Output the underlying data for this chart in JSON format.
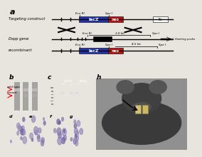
{
  "bg_color": "#e8e4de",
  "lacz_color": "#2233aa",
  "neo_color": "#bb1111",
  "exon_color": "#111111",
  "panel_b_label": "b",
  "panel_c_label": "c",
  "panel_h_label": "h",
  "wt_label": "wild type",
  "mutant_label": "mutant",
  "actin_label": "actin",
  "dspp_label": "dspp",
  "eco_ri": "Eco RI",
  "spe_i": "Spe I",
  "probe_label": "3’ flanking probe",
  "scale_3kb": "3.0 kb",
  "scale_45kb": "4.5 kb",
  "row1_label": "Targeting construct",
  "row2_label": "Dspp gene",
  "row3_label": "recombinant",
  "panel_a_label": "a",
  "panel_d_label": "d",
  "panel_e_label": "e",
  "panel_f_label": "f",
  "panel_g_label": "g",
  "gel_b_bg": "#444444",
  "gel_c_bg": "#111111",
  "hist_color1": "#b0a0c8",
  "hist_color2": "#c0b0d0"
}
